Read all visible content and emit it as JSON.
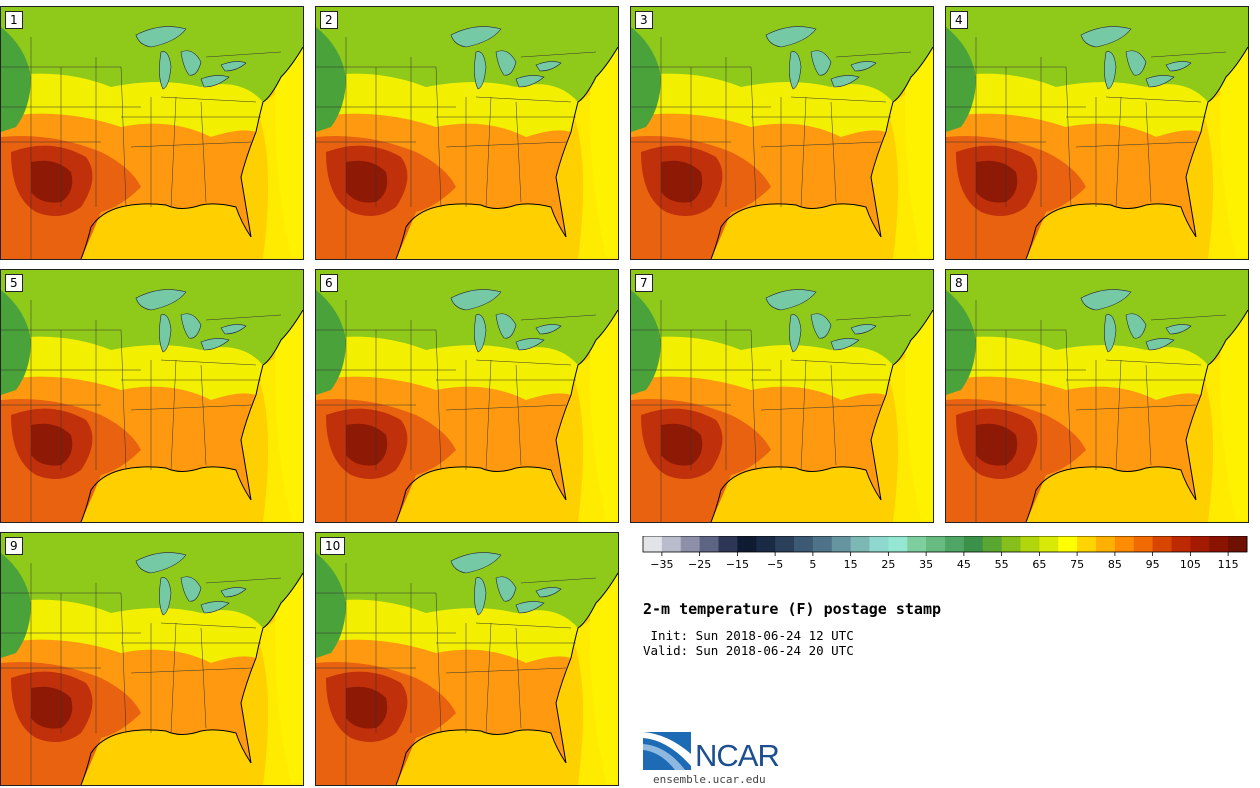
{
  "panels": [
    {
      "label": "1"
    },
    {
      "label": "2"
    },
    {
      "label": "3"
    },
    {
      "label": "4"
    },
    {
      "label": "5"
    },
    {
      "label": "6"
    },
    {
      "label": "7"
    },
    {
      "label": "8"
    },
    {
      "label": "9"
    },
    {
      "label": "10"
    }
  ],
  "colorbar": {
    "colors": [
      "#e2e4e8",
      "#b9bccd",
      "#8d90a8",
      "#5e6582",
      "#2e3656",
      "#0f1a33",
      "#1a2a45",
      "#2a3f5a",
      "#3c5a74",
      "#4e7287",
      "#64959e",
      "#7db8b5",
      "#8fd8cf",
      "#95e6d2",
      "#7fcf9e",
      "#67ba80",
      "#4fa564",
      "#3c914a",
      "#5aa632",
      "#86bf1c",
      "#b2d60e",
      "#d8e90a",
      "#ffff00",
      "#ffd400",
      "#ffb000",
      "#ff8c00",
      "#f06a00",
      "#d84500",
      "#be2a00",
      "#a31a00",
      "#8a1300",
      "#6e1100"
    ],
    "tick_values": [
      -35,
      -25,
      -15,
      -5,
      5,
      15,
      25,
      35,
      45,
      55,
      65,
      75,
      85,
      95,
      105,
      115
    ],
    "range": [
      -40,
      120
    ]
  },
  "title": "2-m temperature (F) postage stamp",
  "init_line": " Init: Sun 2018-06-24 12 UTC",
  "valid_line": "Valid: Sun 2018-06-24 20 UTC",
  "logo": {
    "text": "NCAR",
    "url": "ensemble.ucar.edu"
  },
  "icons": {
    "logo": "ncar-logo-icon"
  }
}
